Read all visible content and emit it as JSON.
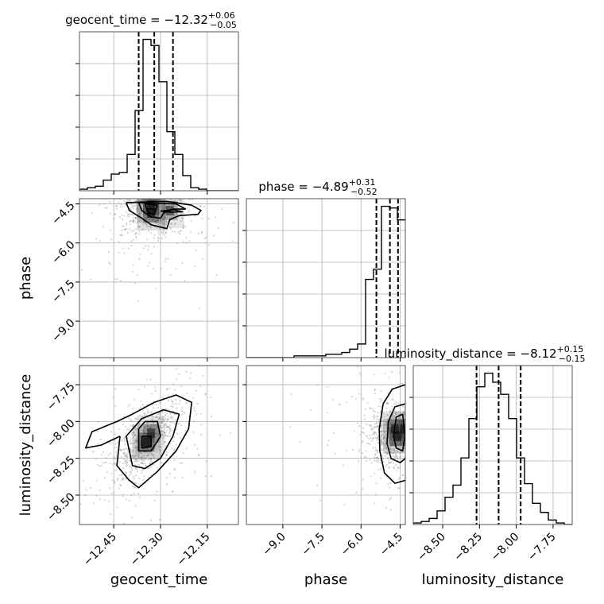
{
  "chart_data": {
    "type": "corner",
    "parameters": [
      {
        "name": "geocent_time",
        "range": [
          -12.56,
          -12.05
        ],
        "ticks": [
          -12.45,
          -12.3,
          -12.15
        ],
        "tick_labels": [
          "−12.45",
          "−12.30",
          "−12.15"
        ],
        "title_main": "geocent_time = −12.32",
        "title_plus": "+0.06",
        "title_minus": "−0.05",
        "quantiles": [
          -12.37,
          -12.32,
          -12.26
        ],
        "hist_edges_start": -12.56,
        "hist_bin_width": 0.0255,
        "hist_counts": [
          1,
          2,
          3,
          7,
          11,
          12,
          24,
          53,
          100,
          96,
          72,
          39,
          24,
          10,
          2,
          1,
          0,
          0,
          0,
          0
        ]
      },
      {
        "name": "phase",
        "range": [
          -10.4,
          -4.3
        ],
        "ticks": [
          -9.0,
          -7.5,
          -6.0,
          -4.5
        ],
        "tick_labels": [
          "−9.0",
          "−7.5",
          "−6.0",
          "−4.5"
        ],
        "title_main": "phase = −4.89",
        "title_plus": "+0.31",
        "title_minus": "−0.52",
        "quantiles": [
          -5.41,
          -4.89,
          -4.58
        ],
        "hist_edges_start": -10.4,
        "hist_bin_width": 0.305,
        "hist_counts": [
          0,
          0,
          0,
          0,
          0,
          0,
          1,
          1,
          1,
          1,
          2,
          2,
          3,
          5,
          8,
          46,
          52,
          89,
          88,
          81
        ]
      },
      {
        "name": "luminosity_distance",
        "range": [
          -8.7,
          -7.62
        ],
        "ticks": [
          -8.5,
          -8.25,
          -8.0,
          -7.75
        ],
        "tick_labels": [
          "−8.50",
          "−8.25",
          "−8.00",
          "−7.75"
        ],
        "title_main": "luminosity_distance = −8.12",
        "title_plus": "+0.15",
        "title_minus": "−0.15",
        "quantiles": [
          -8.27,
          -8.12,
          -7.97
        ],
        "hist_edges_start": -8.7,
        "hist_bin_width": 0.054,
        "hist_counts": [
          1,
          2,
          4,
          9,
          18,
          26,
          44,
          70,
          91,
          100,
          94,
          86,
          70,
          44,
          27,
          14,
          8,
          3,
          1,
          0
        ]
      }
    ],
    "pairs": [
      {
        "x": "geocent_time",
        "y": "phase",
        "note": "samples concentrated near phase -4.7, geocent_time -12.33",
        "contours": [
          [
            [
              -12.41,
              -4.45
            ],
            [
              -12.4,
              -4.75
            ],
            [
              -12.36,
              -5.05
            ],
            [
              -12.33,
              -5.3
            ],
            [
              -12.28,
              -5.45
            ],
            [
              -12.27,
              -5.1
            ],
            [
              -12.24,
              -4.95
            ],
            [
              -12.18,
              -4.9
            ],
            [
              -12.17,
              -4.75
            ],
            [
              -12.2,
              -4.55
            ],
            [
              -12.28,
              -4.4
            ],
            [
              -12.41,
              -4.45
            ]
          ],
          [
            [
              -12.37,
              -4.45
            ],
            [
              -12.36,
              -4.75
            ],
            [
              -12.33,
              -5.0
            ],
            [
              -12.3,
              -5.05
            ],
            [
              -12.29,
              -4.85
            ],
            [
              -12.26,
              -4.7
            ],
            [
              -12.22,
              -4.7
            ],
            [
              -12.25,
              -4.5
            ],
            [
              -12.37,
              -4.45
            ]
          ],
          [
            [
              -12.35,
              -4.5
            ],
            [
              -12.34,
              -4.85
            ],
            [
              -12.32,
              -4.9
            ],
            [
              -12.31,
              -4.55
            ],
            [
              -12.35,
              -4.5
            ]
          ],
          [
            [
              -12.3,
              -4.78
            ],
            [
              -12.26,
              -4.82
            ],
            [
              -12.23,
              -4.8
            ],
            [
              -12.26,
              -4.72
            ],
            [
              -12.3,
              -4.78
            ]
          ]
        ],
        "cores": [
          [
            -12.33,
            -4.55,
            1.0
          ],
          [
            -12.33,
            -4.85,
            0.8
          ],
          [
            -12.27,
            -4.76,
            0.6
          ]
        ]
      },
      {
        "x": "geocent_time",
        "y": "luminosity_distance",
        "note": "positively correlated blob centered near (-12.34, -8.12)",
        "contours": [
          [
            [
              -12.43,
              -8.1
            ],
            [
              -12.44,
              -8.3
            ],
            [
              -12.4,
              -8.4
            ],
            [
              -12.37,
              -8.45
            ],
            [
              -12.31,
              -8.34
            ],
            [
              -12.25,
              -8.2
            ],
            [
              -12.21,
              -8.05
            ],
            [
              -12.2,
              -7.87
            ],
            [
              -12.25,
              -7.82
            ],
            [
              -12.32,
              -7.87
            ],
            [
              -12.39,
              -7.95
            ],
            [
              -12.44,
              -8.0
            ],
            [
              -12.52,
              -8.07
            ],
            [
              -12.54,
              -8.18
            ],
            [
              -12.49,
              -8.16
            ],
            [
              -12.43,
              -8.1
            ]
          ],
          [
            [
              -12.41,
              -8.1
            ],
            [
              -12.39,
              -8.3
            ],
            [
              -12.35,
              -8.32
            ],
            [
              -12.3,
              -8.25
            ],
            [
              -12.26,
              -8.1
            ],
            [
              -12.24,
              -7.95
            ],
            [
              -12.29,
              -7.92
            ],
            [
              -12.36,
              -7.98
            ],
            [
              -12.41,
              -8.1
            ]
          ],
          [
            [
              -12.37,
              -8.05
            ],
            [
              -12.37,
              -8.2
            ],
            [
              -12.33,
              -8.2
            ],
            [
              -12.3,
              -8.1
            ],
            [
              -12.31,
              -8.0
            ],
            [
              -12.35,
              -8.0
            ],
            [
              -12.37,
              -8.05
            ]
          ],
          [
            [
              -12.36,
              -8.1
            ],
            [
              -12.36,
              -8.18
            ],
            [
              -12.33,
              -8.17
            ],
            [
              -12.33,
              -8.1
            ],
            [
              -12.36,
              -8.1
            ]
          ]
        ],
        "cores": [
          [
            -12.345,
            -8.14,
            1.0
          ],
          [
            -12.33,
            -8.08,
            0.6
          ]
        ]
      },
      {
        "x": "phase",
        "y": "luminosity_distance",
        "note": "samples pile up near phase -4.7 against right edge",
        "contours": [
          [
            [
              -4.3,
              -7.75
            ],
            [
              -4.8,
              -7.78
            ],
            [
              -5.15,
              -7.88
            ],
            [
              -5.3,
              -8.05
            ],
            [
              -5.28,
              -8.2
            ],
            [
              -5.1,
              -8.35
            ],
            [
              -4.7,
              -8.42
            ],
            [
              -4.3,
              -8.4
            ]
          ],
          [
            [
              -4.3,
              -7.88
            ],
            [
              -4.7,
              -7.9
            ],
            [
              -4.95,
              -8.0
            ],
            [
              -5.0,
              -8.15
            ],
            [
              -4.85,
              -8.25
            ],
            [
              -4.5,
              -8.28
            ],
            [
              -4.3,
              -8.25
            ]
          ],
          [
            [
              -4.4,
              -7.95
            ],
            [
              -4.65,
              -7.97
            ],
            [
              -4.75,
              -8.1
            ],
            [
              -4.65,
              -8.18
            ],
            [
              -4.4,
              -8.2
            ],
            [
              -4.32,
              -8.1
            ],
            [
              -4.4,
              -7.95
            ]
          ]
        ],
        "cores": [
          [
            -4.6,
            -8.1,
            1.0
          ],
          [
            -4.35,
            -8.05,
            0.8
          ],
          [
            -4.7,
            -8.05,
            0.6
          ]
        ]
      }
    ]
  }
}
